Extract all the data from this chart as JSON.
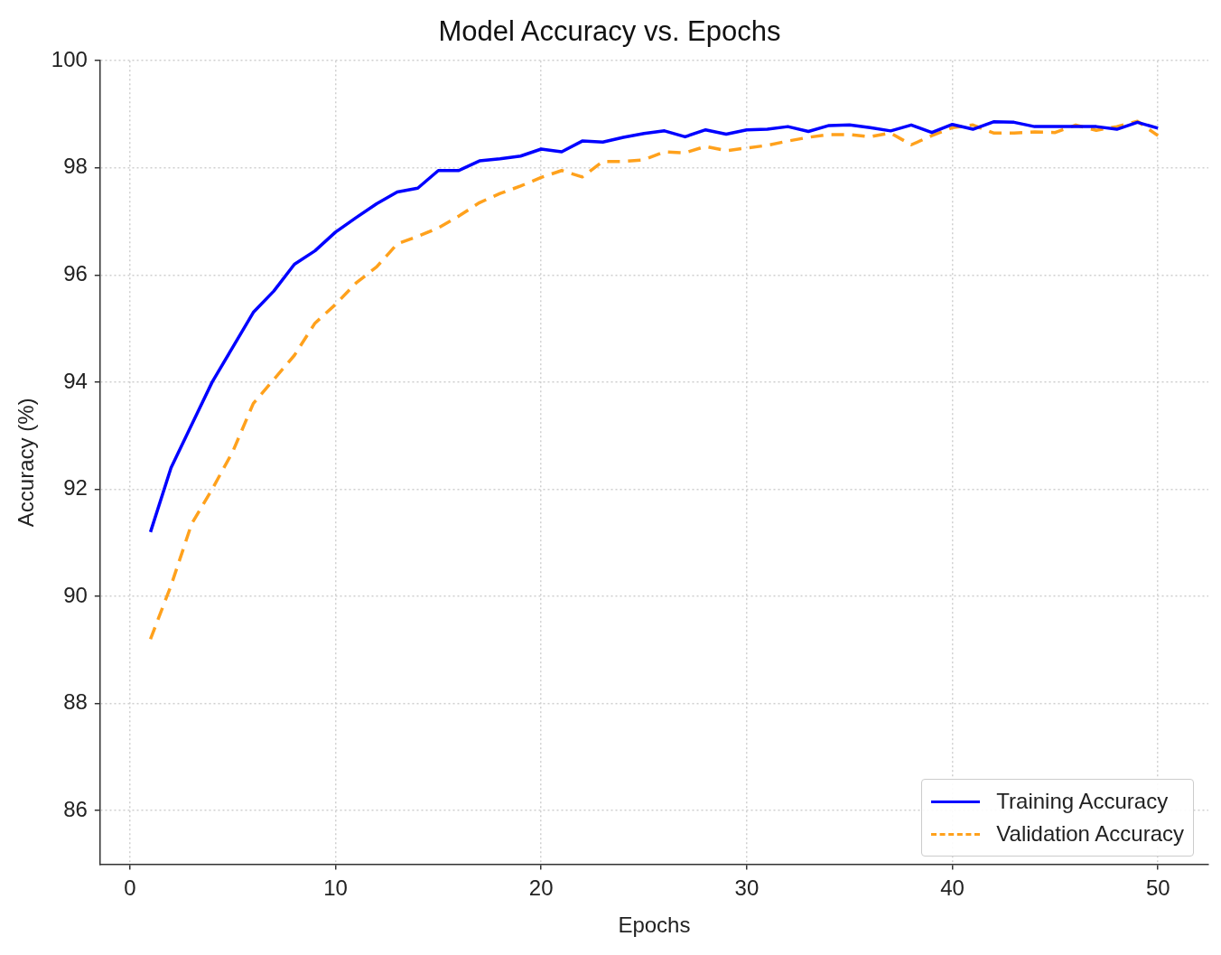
{
  "chart_data": {
    "type": "line",
    "title": "Model Accuracy vs. Epochs",
    "xlabel": "Epochs",
    "ylabel": "Accuracy (%)",
    "x": [
      1,
      2,
      3,
      4,
      5,
      6,
      7,
      8,
      9,
      10,
      11,
      12,
      13,
      14,
      15,
      16,
      17,
      18,
      19,
      20,
      21,
      22,
      23,
      24,
      25,
      26,
      27,
      28,
      29,
      30,
      31,
      32,
      33,
      34,
      35,
      36,
      37,
      38,
      39,
      40,
      41,
      42,
      43,
      44,
      45,
      46,
      47,
      48,
      49,
      50
    ],
    "series": [
      {
        "name": "Training Accuracy",
        "color": "#0000ff",
        "line_style": "solid",
        "values": [
          91.2,
          92.4,
          93.2,
          94.0,
          94.65,
          95.3,
          95.7,
          96.2,
          96.45,
          96.8,
          97.07,
          97.33,
          97.55,
          97.62,
          97.95,
          97.95,
          98.13,
          98.17,
          98.22,
          98.35,
          98.3,
          98.5,
          98.48,
          98.57,
          98.64,
          98.69,
          98.58,
          98.71,
          98.63,
          98.71,
          98.72,
          98.77,
          98.68,
          98.79,
          98.8,
          98.75,
          98.69,
          98.8,
          98.66,
          98.81,
          98.72,
          98.86,
          98.85,
          98.77,
          98.77,
          98.77,
          98.77,
          98.72,
          98.85,
          98.74
        ]
      },
      {
        "name": "Validation Accuracy",
        "color": "#ffa11c",
        "line_style": "dashed",
        "values": [
          89.2,
          90.2,
          91.35,
          92.0,
          92.7,
          93.6,
          94.05,
          94.5,
          95.1,
          95.45,
          95.85,
          96.15,
          96.58,
          96.72,
          96.88,
          97.1,
          97.35,
          97.52,
          97.66,
          97.82,
          97.95,
          97.83,
          98.12,
          98.12,
          98.15,
          98.3,
          98.28,
          98.4,
          98.32,
          98.37,
          98.42,
          98.5,
          98.57,
          98.62,
          98.62,
          98.58,
          98.65,
          98.43,
          98.6,
          98.75,
          98.8,
          98.65,
          98.65,
          98.67,
          98.66,
          98.8,
          98.7,
          98.77,
          98.87,
          98.6
        ]
      }
    ],
    "xlim": [
      -1.45,
      52.45
    ],
    "xticks": [
      0,
      10,
      20,
      30,
      40,
      50
    ],
    "ylim": [
      85,
      100
    ],
    "yticks": [
      86,
      88,
      90,
      92,
      94,
      96,
      98,
      100
    ],
    "grid": true,
    "legend": "bottom right",
    "marker": "none"
  }
}
